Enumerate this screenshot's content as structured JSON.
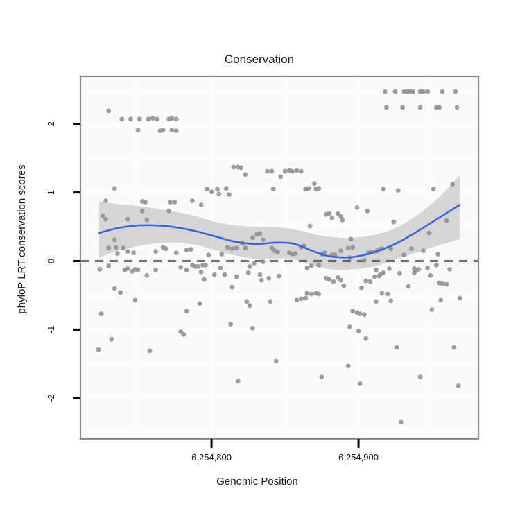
{
  "chart_data": {
    "type": "scatter",
    "title": "Conservation",
    "xlabel": "Genomic Position",
    "ylabel": "phyloP LRT conservation scores",
    "x_domain": [
      6254710.8,
      6254981.6
    ],
    "y_domain": [
      -2.594,
      2.695
    ],
    "x_ticks": [
      {
        "value": 6254800,
        "label": "6,254,800"
      },
      {
        "value": 6254900,
        "label": "6,254,900"
      }
    ],
    "x_minor_ticks": [
      6254750,
      6254850,
      6254950
    ],
    "y_ticks": [
      {
        "value": 2,
        "label": "2"
      },
      {
        "value": 1,
        "label": "1"
      },
      {
        "value": 0,
        "label": "0"
      },
      {
        "value": -1,
        "label": "-1"
      },
      {
        "value": -2,
        "label": "-2"
      }
    ],
    "y_minor_ticks": [
      2.5,
      1.5,
      0.5,
      -0.5,
      -1.5,
      -2.5
    ],
    "reference_line_y": 0,
    "grid": "on",
    "legend": "none",
    "colors": {
      "point": "#8f8f8f",
      "smooth_line": "#3b63df",
      "confidence_band": "rgba(130,130,130,0.30)",
      "reference_line": "#1a1a1a",
      "panel_background": "#fafafa",
      "gridline": "#ffffff",
      "panel_border": "#8a8a8a",
      "text": "#1a1a1a"
    },
    "smooth_line": [
      [
        6254723.6,
        0.41
      ],
      [
        6254736.3,
        0.48
      ],
      [
        6254750.5,
        0.52
      ],
      [
        6254769.3,
        0.51
      ],
      [
        6254788.2,
        0.44
      ],
      [
        6254802.4,
        0.36
      ],
      [
        6254816.5,
        0.28
      ],
      [
        6254830.7,
        0.25
      ],
      [
        6254844.8,
        0.27
      ],
      [
        6254856.6,
        0.25
      ],
      [
        6254868.4,
        0.15
      ],
      [
        6254877.8,
        0.08
      ],
      [
        6254887.3,
        0.055
      ],
      [
        6254896.7,
        0.06
      ],
      [
        6254910.8,
        0.13
      ],
      [
        6254925.0,
        0.25
      ],
      [
        6254939.2,
        0.42
      ],
      [
        6254953.3,
        0.61
      ],
      [
        6254968.9,
        0.82
      ]
    ],
    "confidence_band": [
      [
        6254723.6,
        0.05,
        0.87
      ],
      [
        6254736.3,
        0.15,
        0.83
      ],
      [
        6254750.5,
        0.22,
        0.8
      ],
      [
        6254769.3,
        0.27,
        0.74
      ],
      [
        6254788.2,
        0.24,
        0.66
      ],
      [
        6254802.4,
        0.16,
        0.57
      ],
      [
        6254816.5,
        0.08,
        0.52
      ],
      [
        6254830.7,
        0.03,
        0.5
      ],
      [
        6254844.8,
        0.04,
        0.49
      ],
      [
        6254856.6,
        0.02,
        0.46
      ],
      [
        6254868.4,
        -0.06,
        0.4
      ],
      [
        6254877.8,
        -0.11,
        0.36
      ],
      [
        6254887.3,
        -0.13,
        0.34
      ],
      [
        6254896.7,
        -0.12,
        0.34
      ],
      [
        6254910.8,
        -0.08,
        0.38
      ],
      [
        6254925.0,
        0.02,
        0.48
      ],
      [
        6254939.2,
        0.12,
        0.66
      ],
      [
        6254953.3,
        0.22,
        0.9
      ],
      [
        6254968.9,
        0.32,
        1.25
      ]
    ],
    "points": [
      [
        6254730,
        2.19
      ],
      [
        6254739,
        2.07
      ],
      [
        6254745,
        2.07
      ],
      [
        6254751,
        2.07
      ],
      [
        6254757,
        2.07
      ],
      [
        6254760,
        2.08
      ],
      [
        6254763,
        2.07
      ],
      [
        6254771,
        2.07
      ],
      [
        6254773,
        2.08
      ],
      [
        6254776,
        2.07
      ],
      [
        6254750,
        1.91
      ],
      [
        6254765,
        1.9
      ],
      [
        6254767,
        1.91
      ],
      [
        6254773,
        1.91
      ],
      [
        6254776,
        1.9
      ],
      [
        6254734,
        1.06
      ],
      [
        6254728,
        0.88
      ],
      [
        6254726,
        0.66
      ],
      [
        6254728,
        0.61
      ],
      [
        6254743,
        0.61
      ],
      [
        6254753,
        0.87
      ],
      [
        6254755,
        0.86
      ],
      [
        6254753,
        0.73
      ],
      [
        6254756,
        0.6
      ],
      [
        6254771,
        0.73
      ],
      [
        6254772,
        0.86
      ],
      [
        6254775,
        0.86
      ],
      [
        6254787,
        0.88
      ],
      [
        6254793,
        0.82
      ],
      [
        6254797,
        1.05
      ],
      [
        6254800,
        1.01
      ],
      [
        6254734,
        0.31
      ],
      [
        6254735,
        0.2
      ],
      [
        6254736,
        0.11
      ],
      [
        6254730,
        0.19
      ],
      [
        6254740,
        0.19
      ],
      [
        6254743,
        0.14
      ],
      [
        6254747,
        0.12
      ],
      [
        6254762,
        0.14
      ],
      [
        6254767,
        0.2
      ],
      [
        6254769,
        0.18
      ],
      [
        6254776,
        0.12
      ],
      [
        6254783,
        0.16
      ],
      [
        6254786,
        0.17
      ],
      [
        6254798,
        0.09
      ],
      [
        6254724,
        -0.12
      ],
      [
        6254730,
        -0.07
      ],
      [
        6254741,
        -0.13
      ],
      [
        6254743,
        -0.11
      ],
      [
        6254746,
        -0.15
      ],
      [
        6254748,
        -0.12
      ],
      [
        6254750,
        -0.13
      ],
      [
        6254756,
        -0.21
      ],
      [
        6254762,
        -0.13
      ],
      [
        6254779,
        -0.09
      ],
      [
        6254783,
        -0.13
      ],
      [
        6254787,
        -0.06
      ],
      [
        6254789,
        -0.08
      ],
      [
        6254791,
        -0.08
      ],
      [
        6254794,
        -0.06
      ],
      [
        6254796,
        -0.06
      ],
      [
        6254793,
        -0.16
      ],
      [
        6254795,
        -0.27
      ],
      [
        6254802,
        -0.2
      ],
      [
        6254734,
        -0.4
      ],
      [
        6254738,
        -0.46
      ],
      [
        6254748,
        -0.57
      ],
      [
        6254725,
        -0.77
      ],
      [
        6254792,
        -0.62
      ],
      [
        6254783,
        -0.73
      ],
      [
        6254779,
        -1.03
      ],
      [
        6254781,
        -1.07
      ],
      [
        6254732,
        -1.14
      ],
      [
        6254723,
        -1.29
      ],
      [
        6254758,
        -1.31
      ],
      [
        6254815,
        1.37
      ],
      [
        6254818,
        1.37
      ],
      [
        6254820,
        1.36
      ],
      [
        6254823,
        1.26
      ],
      [
        6254838,
        1.31
      ],
      [
        6254841,
        1.31
      ],
      [
        6254850,
        1.31
      ],
      [
        6254853,
        1.32
      ],
      [
        6254855,
        1.31
      ],
      [
        6254858,
        1.32
      ],
      [
        6254861,
        1.31
      ],
      [
        6254847,
        1.23
      ],
      [
        6254842,
        1.05
      ],
      [
        6254804,
        1.05
      ],
      [
        6254805,
        0.98
      ],
      [
        6254810,
        1.06
      ],
      [
        6254812,
        0.97
      ],
      [
        6254864,
        1.05
      ],
      [
        6254866,
        1.06
      ],
      [
        6254870,
        1.13
      ],
      [
        6254871,
        1.05
      ],
      [
        6254873,
        1.06
      ],
      [
        6254878,
        0.68
      ],
      [
        6254880,
        0.69
      ],
      [
        6254882,
        0.63
      ],
      [
        6254886,
        0.69
      ],
      [
        6254888,
        0.65
      ],
      [
        6254889,
        0.6
      ],
      [
        6254867,
        0.51
      ],
      [
        6254828,
        0.34
      ],
      [
        6254831,
        0.39
      ],
      [
        6254833,
        0.4
      ],
      [
        6254835,
        0.31
      ],
      [
        6254821,
        0.26
      ],
      [
        6254823,
        0.19
      ],
      [
        6254811,
        0.2
      ],
      [
        6254814,
        0.18
      ],
      [
        6254817,
        0.19
      ],
      [
        6254807,
        0.1
      ],
      [
        6254841,
        0.19
      ],
      [
        6254843,
        0.15
      ],
      [
        6254845,
        0.13
      ],
      [
        6254853,
        0.12
      ],
      [
        6254855,
        0.1
      ],
      [
        6254857,
        0.11
      ],
      [
        6254861,
        0.2
      ],
      [
        6254863,
        0.22
      ],
      [
        6254875,
        0.1
      ],
      [
        6254877,
        0.12
      ],
      [
        6254882,
        0.09
      ],
      [
        6254884,
        0.09
      ],
      [
        6254888,
        0.15
      ],
      [
        6254894,
        0.05
      ],
      [
        6254806,
        -0.1
      ],
      [
        6254809,
        -0.2
      ],
      [
        6254817,
        -0.23
      ],
      [
        6254825,
        -0.17
      ],
      [
        6254826,
        -0.08
      ],
      [
        6254814,
        -0.38
      ],
      [
        6254829,
        -0.03
      ],
      [
        6254835,
        -0.01
      ],
      [
        6254833,
        -0.2
      ],
      [
        6254834,
        -0.28
      ],
      [
        6254839,
        -0.25
      ],
      [
        6254846,
        -0.22
      ],
      [
        6254824,
        -0.59
      ],
      [
        6254826,
        -0.65
      ],
      [
        6254840,
        -0.59
      ],
      [
        6254858,
        -0.57
      ],
      [
        6254861,
        -0.55
      ],
      [
        6254864,
        -0.54
      ],
      [
        6254865,
        -0.47
      ],
      [
        6254868,
        -0.48
      ],
      [
        6254871,
        -0.47
      ],
      [
        6254873,
        -0.48
      ],
      [
        6254813,
        -0.92
      ],
      [
        6254828,
        -0.98
      ],
      [
        6254844,
        -1.46
      ],
      [
        6254818,
        -1.75
      ],
      [
        6254875,
        -1.69
      ],
      [
        6254893,
        -1.53
      ],
      [
        6254894,
        -0.96
      ],
      [
        6254878,
        -0.25
      ],
      [
        6254880,
        -0.27
      ],
      [
        6254883,
        -0.3
      ],
      [
        6254886,
        -0.24
      ],
      [
        6254888,
        -0.28
      ],
      [
        6254890,
        -0.36
      ],
      [
        6254865,
        -0.1
      ],
      [
        6254868,
        -0.07
      ],
      [
        6254873,
        -0.06
      ],
      [
        6254918,
        2.47
      ],
      [
        6254925,
        2.47
      ],
      [
        6254931,
        2.47
      ],
      [
        6254933,
        2.47
      ],
      [
        6254935,
        2.47
      ],
      [
        6254937,
        2.47
      ],
      [
        6254942,
        2.47
      ],
      [
        6254944,
        2.47
      ],
      [
        6254947,
        2.47
      ],
      [
        6254957,
        2.47
      ],
      [
        6254966,
        2.47
      ],
      [
        6254919,
        2.24
      ],
      [
        6254930,
        2.24
      ],
      [
        6254942,
        2.24
      ],
      [
        6254953,
        2.24
      ],
      [
        6254955,
        2.24
      ],
      [
        6254967,
        2.24
      ],
      [
        6254917,
        1.05
      ],
      [
        6254927,
        1.03
      ],
      [
        6254951,
        1.05
      ],
      [
        6254964,
        1.12
      ],
      [
        6254899,
        0.78
      ],
      [
        6254906,
        0.73
      ],
      [
        6254924,
        0.57
      ],
      [
        6254960,
        0.59
      ],
      [
        6254948,
        0.41
      ],
      [
        6254895,
        0.32
      ],
      [
        6254896,
        0.2
      ],
      [
        6254893,
        0.19
      ],
      [
        6254907,
        0.12
      ],
      [
        6254909,
        0.13
      ],
      [
        6254912,
        0.14
      ],
      [
        6254914,
        0.17
      ],
      [
        6254916,
        0.18
      ],
      [
        6254922,
        0.18
      ],
      [
        6254931,
        0.09
      ],
      [
        6254936,
        0.18
      ],
      [
        6254944,
        0.15
      ],
      [
        6254954,
        0.1
      ],
      [
        6254904,
        0.01
      ],
      [
        6254912,
        -0.13
      ],
      [
        6254915,
        -0.19
      ],
      [
        6254917,
        -0.17
      ],
      [
        6254921,
        -0.11
      ],
      [
        6254928,
        -0.18
      ],
      [
        6254938,
        -0.11
      ],
      [
        6254938,
        -0.17
      ],
      [
        6254939,
        -0.14
      ],
      [
        6254941,
        -0.12
      ],
      [
        6254947,
        -0.1
      ],
      [
        6254949,
        -0.21
      ],
      [
        6254953,
        -0.06
      ],
      [
        6254962,
        -0.12
      ],
      [
        6254905,
        -0.29
      ],
      [
        6254908,
        -0.3
      ],
      [
        6254911,
        -0.23
      ],
      [
        6254914,
        -0.22
      ],
      [
        6254902,
        -0.39
      ],
      [
        6254934,
        -0.37
      ],
      [
        6254955,
        -0.32
      ],
      [
        6254957,
        -0.33
      ],
      [
        6254960,
        -0.34
      ],
      [
        6254916,
        -0.47
      ],
      [
        6254920,
        -0.48
      ],
      [
        6254912,
        -0.59
      ],
      [
        6254922,
        -0.58
      ],
      [
        6254956,
        -0.57
      ],
      [
        6254969,
        -0.54
      ],
      [
        6254950,
        -0.71
      ],
      [
        6254896,
        -0.73
      ],
      [
        6254899,
        -0.75
      ],
      [
        6254901,
        -0.77
      ],
      [
        6254904,
        -0.78
      ],
      [
        6254900,
        -1.02
      ],
      [
        6254905,
        -1.13
      ],
      [
        6254926,
        -1.26
      ],
      [
        6254965,
        -1.26
      ],
      [
        6254901,
        -1.79
      ],
      [
        6254942,
        -1.69
      ],
      [
        6254968,
        -1.82
      ],
      [
        6254929,
        -2.35
      ]
    ]
  }
}
